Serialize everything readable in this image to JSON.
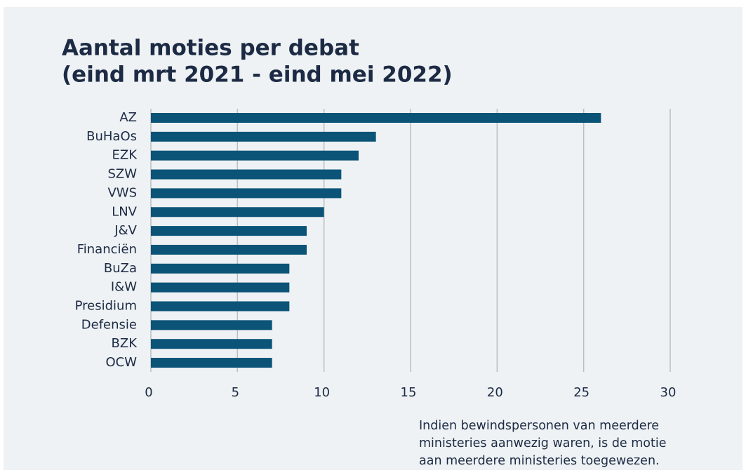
{
  "chart_data": {
    "type": "barh",
    "title": [
      "Aantal moties per debat",
      "(eind mrt 2021 - eind mei 2022)"
    ],
    "categories": [
      "AZ",
      "BuHaOs",
      "EZK",
      "SZW",
      "VWS",
      "LNV",
      "J&V",
      "Financiën",
      "BuZa",
      "I&W",
      "Presidium",
      "Defensie",
      "BZK",
      "OCW"
    ],
    "values": [
      26,
      13,
      12,
      11,
      11,
      10,
      9,
      9,
      8,
      8,
      8,
      7,
      7,
      7
    ],
    "color": "#0b5478",
    "xlim": [
      0,
      30
    ],
    "xticks": [
      0,
      5,
      10,
      15,
      20,
      25,
      30
    ],
    "grid": true,
    "note": [
      "Indien bewindspersonen van meerdere",
      "ministeries aanwezig waren, is de motie",
      "aan meerdere ministeries toegewezen."
    ]
  }
}
